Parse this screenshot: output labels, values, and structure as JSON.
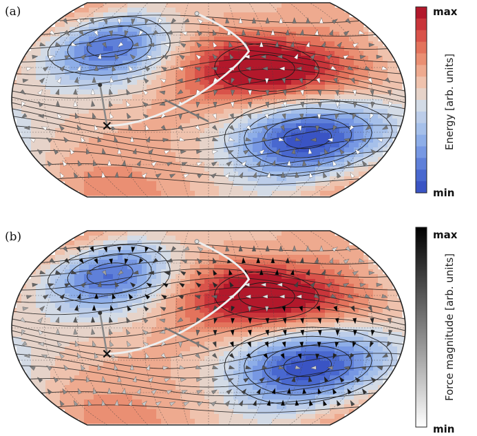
{
  "chart_data": [
    {
      "type": "heatmap",
      "panel_label": "(a)",
      "quantity": "energy",
      "colorbar": {
        "title": "Energy [arb. units]",
        "top_label": "max",
        "bottom_label": "min",
        "colors_top_to_bottom": [
          "#b2182b",
          "#c9353a",
          "#d9534a",
          "#e3735c",
          "#ea8f73",
          "#eeaa8f",
          "#efc2ad",
          "#e6d3c9",
          "#d3dbe6",
          "#bccde9",
          "#a6c0ea",
          "#8eaee8",
          "#7798e3",
          "#5f80d9",
          "#4968cf",
          "#3a54c4"
        ]
      },
      "projection": "Robinson",
      "contour_lines": true,
      "vector_arrows": true,
      "minimum_markers": [
        {
          "marker": "x",
          "lon": -95,
          "lat": -24
        },
        {
          "marker": "dot",
          "lon": -100,
          "lat": 14
        }
      ],
      "features": {
        "maxima": [
          {
            "lon": 55,
            "lat": 30
          }
        ],
        "minima": [
          {
            "lon": -100,
            "lat": 50
          },
          {
            "lon": 95,
            "lat": -35
          }
        ]
      }
    },
    {
      "type": "heatmap",
      "panel_label": "(b)",
      "quantity": "force magnitude",
      "colorbar": {
        "title": "Force magnitude [arb. units]",
        "top_label": "max",
        "bottom_label": "min",
        "colors_top_to_bottom": [
          "#000000",
          "#ffffff"
        ]
      },
      "projection": "Robinson",
      "contour_lines": true,
      "vector_arrows": true,
      "minimum_markers": [
        {
          "marker": "x",
          "lon": -95,
          "lat": -24
        },
        {
          "marker": "dot",
          "lon": -100,
          "lat": 14
        }
      ],
      "features": {
        "maxima": [
          {
            "lon": 55,
            "lat": 30
          }
        ],
        "minima": [
          {
            "lon": -100,
            "lat": 50
          },
          {
            "lon": 95,
            "lat": -35
          }
        ]
      }
    }
  ]
}
